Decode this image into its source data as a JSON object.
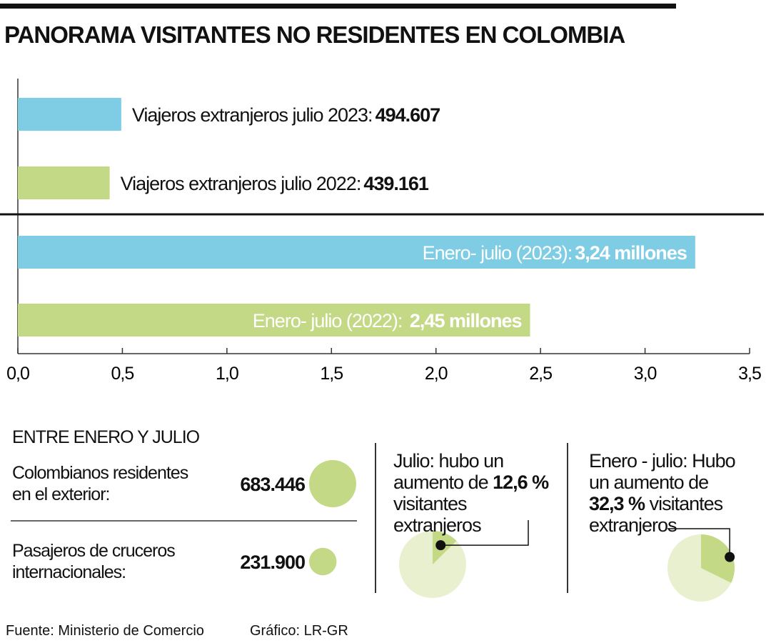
{
  "title": "PANORAMA VISITANTES NO RESIDENTES EN COLOMBIA",
  "source": "Fuente: Ministerio de Comercio",
  "credit": "Gráfico: LR-GR",
  "chart_data": [
    {
      "type": "bar",
      "orientation": "horizontal",
      "categories": [
        "Viajeros extranjeros  julio 2023:",
        "Viajeros extranjeros  julio 2022:",
        "Enero- julio (2023):",
        "Enero- julio (2022): "
      ],
      "values": [
        0.494607,
        0.439161,
        3.24,
        2.45
      ],
      "value_labels": [
        "494.607",
        "439.161",
        "3,24 millones",
        "2,45 millones"
      ],
      "colors": [
        "#7fcde5",
        "#c3d985",
        "#7fcde5",
        "#c3d985"
      ],
      "xlim": [
        0,
        3.5
      ],
      "xticks": [
        {
          "value": 0,
          "label": "0,0"
        },
        {
          "value": 0.5,
          "label": "0,5"
        },
        {
          "value": 1,
          "label": "1,0"
        },
        {
          "value": 1.5,
          "label": "1,5"
        },
        {
          "value": 2,
          "label": "2,0"
        },
        {
          "value": 2.5,
          "label": "2,5"
        },
        {
          "value": 3,
          "label": "3,0"
        },
        {
          "value": 3.5,
          "label": "3,5"
        }
      ]
    },
    {
      "type": "bubble",
      "title": "ENTRE ENERO Y JULIO",
      "categories": [
        "Colombianos residentes en el exterior:",
        "Pasajeros  de cruceros internacionales:"
      ],
      "values": [
        683446,
        231900
      ],
      "value_labels": [
        "683.446",
        "231.900"
      ],
      "color": "#c3d985"
    },
    {
      "type": "pie",
      "annotation": "Julio: hubo un aumento de",
      "values": [
        12.6
      ],
      "value_labels": [
        "12,6 %"
      ],
      "caption": "visitantes extranjeros",
      "color": "#c3d985",
      "background": "#e9f0cf"
    },
    {
      "type": "pie",
      "annotation": "Enero - julio:  Hubo un aumento de",
      "values": [
        32.3
      ],
      "value_labels": [
        "32,3 %"
      ],
      "caption": "visitantes extranjeros",
      "color": "#c3d985",
      "background": "#e9f0cf"
    }
  ]
}
